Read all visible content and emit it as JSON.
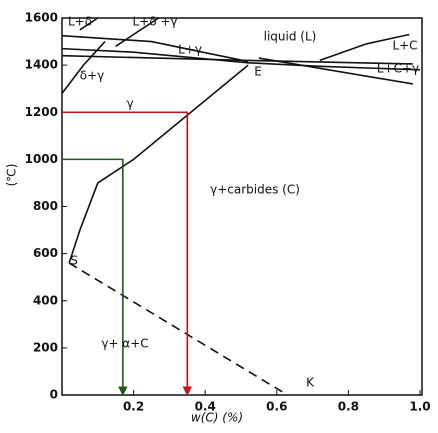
{
  "chart_data": {
    "type": "line",
    "x_label": "w(C) (%)",
    "y_label": "(℃)",
    "xlim": [
      0,
      1.0
    ],
    "xticks": [
      0.2,
      0.4,
      0.6,
      0.8,
      {
        "value": 1.0,
        "label": "1.0"
      }
    ],
    "ylim": [
      0,
      1600
    ],
    "yticks": [
      0,
      200,
      400,
      600,
      800,
      1000,
      1200,
      1400,
      1600
    ],
    "annotations": [
      "L+δ",
      "L+δ +γ",
      "L+γ",
      "liquid (L)",
      "L+C",
      "L+C+γ",
      "δ+γ",
      "E",
      "γ",
      "γ+carbides (C)",
      "S",
      "γ+ α+C",
      "K"
    ],
    "series": [
      {
        "color": "#111111",
        "x": [
          0,
          0.25,
          0.52
        ],
        "values": [
          1525,
          1500,
          1415
        ]
      },
      {
        "color": "#111111",
        "x": [
          0,
          0.2,
          0.52,
          0.72,
          1.0
        ],
        "values": [
          1470,
          1455,
          1410,
          1395,
          1380
        ]
      },
      {
        "color": "#111111",
        "x": [
          0,
          0.52,
          0.98
        ],
        "values": [
          1440,
          1420,
          1405
        ]
      },
      {
        "color": "#111111",
        "x": [
          0.72,
          0.85,
          0.97
        ],
        "values": [
          1420,
          1490,
          1530
        ]
      },
      {
        "color": "#111111",
        "x": [
          0.55,
          0.98
        ],
        "values": [
          1430,
          1320
        ]
      },
      {
        "color": "#111111",
        "x": [
          0,
          0.06,
          0.12
        ],
        "values": [
          1280,
          1400,
          1500
        ]
      },
      {
        "color": "#111111",
        "x": [
          0.05,
          0.1
        ],
        "values": [
          1550,
          1600
        ]
      },
      {
        "color": "#111111",
        "x": [
          0.15,
          0.27
        ],
        "values": [
          1480,
          1600
        ]
      },
      {
        "color": "#111111",
        "x": [
          0.52,
          0.2,
          0.1,
          0.05,
          0.02
        ],
        "values": [
          1400,
          1000,
          900,
          700,
          560
        ]
      },
      {
        "color": "#111111",
        "dashed": true,
        "x": [
          0.02,
          0.63
        ],
        "values": [
          560,
          0
        ]
      },
      {
        "color": "#cc1111",
        "arrow": true,
        "x": [
          0,
          0.35,
          0.35
        ],
        "values": [
          1200,
          1200,
          0
        ]
      },
      {
        "color": "#1a5c1a",
        "arrow": true,
        "x": [
          0,
          0.17,
          0.17
        ],
        "values": [
          1000,
          1000,
          0
        ]
      }
    ]
  }
}
